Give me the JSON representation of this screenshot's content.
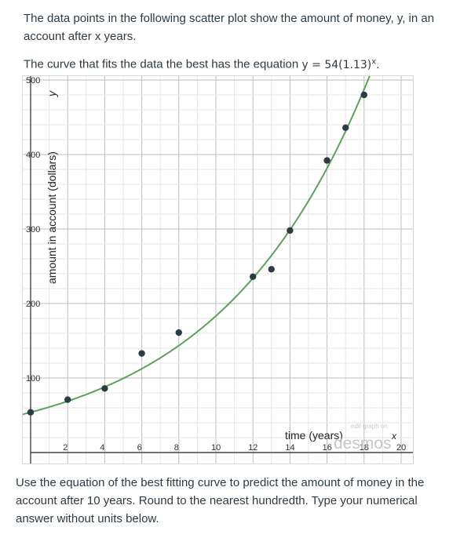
{
  "intro": {
    "line1": "The data points in the following scatter plot show the amount of money, y, in an account after x years.",
    "line2_prefix": "The curve that fits the data the best has the equation ",
    "equation_base": "y = 54(1.13)",
    "equation_exp": "x",
    "equation_end": "."
  },
  "question": {
    "text": "Use the equation of the best fitting curve to predict the amount of money in the account after 10 years. Round to the nearest hundredth. Type your numerical answer without units below."
  },
  "watermark": {
    "small": "edit graph on",
    "brand": "desmos"
  },
  "colors": {
    "curve": "#5aa35a",
    "points": "#2d3b45",
    "grid": "#cfcfcf"
  },
  "chart_data": {
    "type": "scatter",
    "xlabel": "time (years)",
    "xvar": "x",
    "ylabel": "amount in account (dollars)",
    "yvar": "y",
    "xlim": [
      0,
      20
    ],
    "ylim": [
      0,
      500
    ],
    "xticks": [
      2,
      4,
      6,
      8,
      10,
      12,
      14,
      16,
      18,
      20
    ],
    "yticks": [
      100,
      200,
      300,
      400,
      500
    ],
    "grid": true,
    "points": [
      {
        "x": 0,
        "y": 54
      },
      {
        "x": 2,
        "y": 71
      },
      {
        "x": 4,
        "y": 86
      },
      {
        "x": 6,
        "y": 133
      },
      {
        "x": 8,
        "y": 161
      },
      {
        "x": 12,
        "y": 236
      },
      {
        "x": 13,
        "y": 246
      },
      {
        "x": 14,
        "y": 298
      },
      {
        "x": 16,
        "y": 392
      },
      {
        "x": 17,
        "y": 436
      },
      {
        "x": 18,
        "y": 480
      }
    ],
    "curve": {
      "a": 54,
      "b": 1.13
    }
  }
}
